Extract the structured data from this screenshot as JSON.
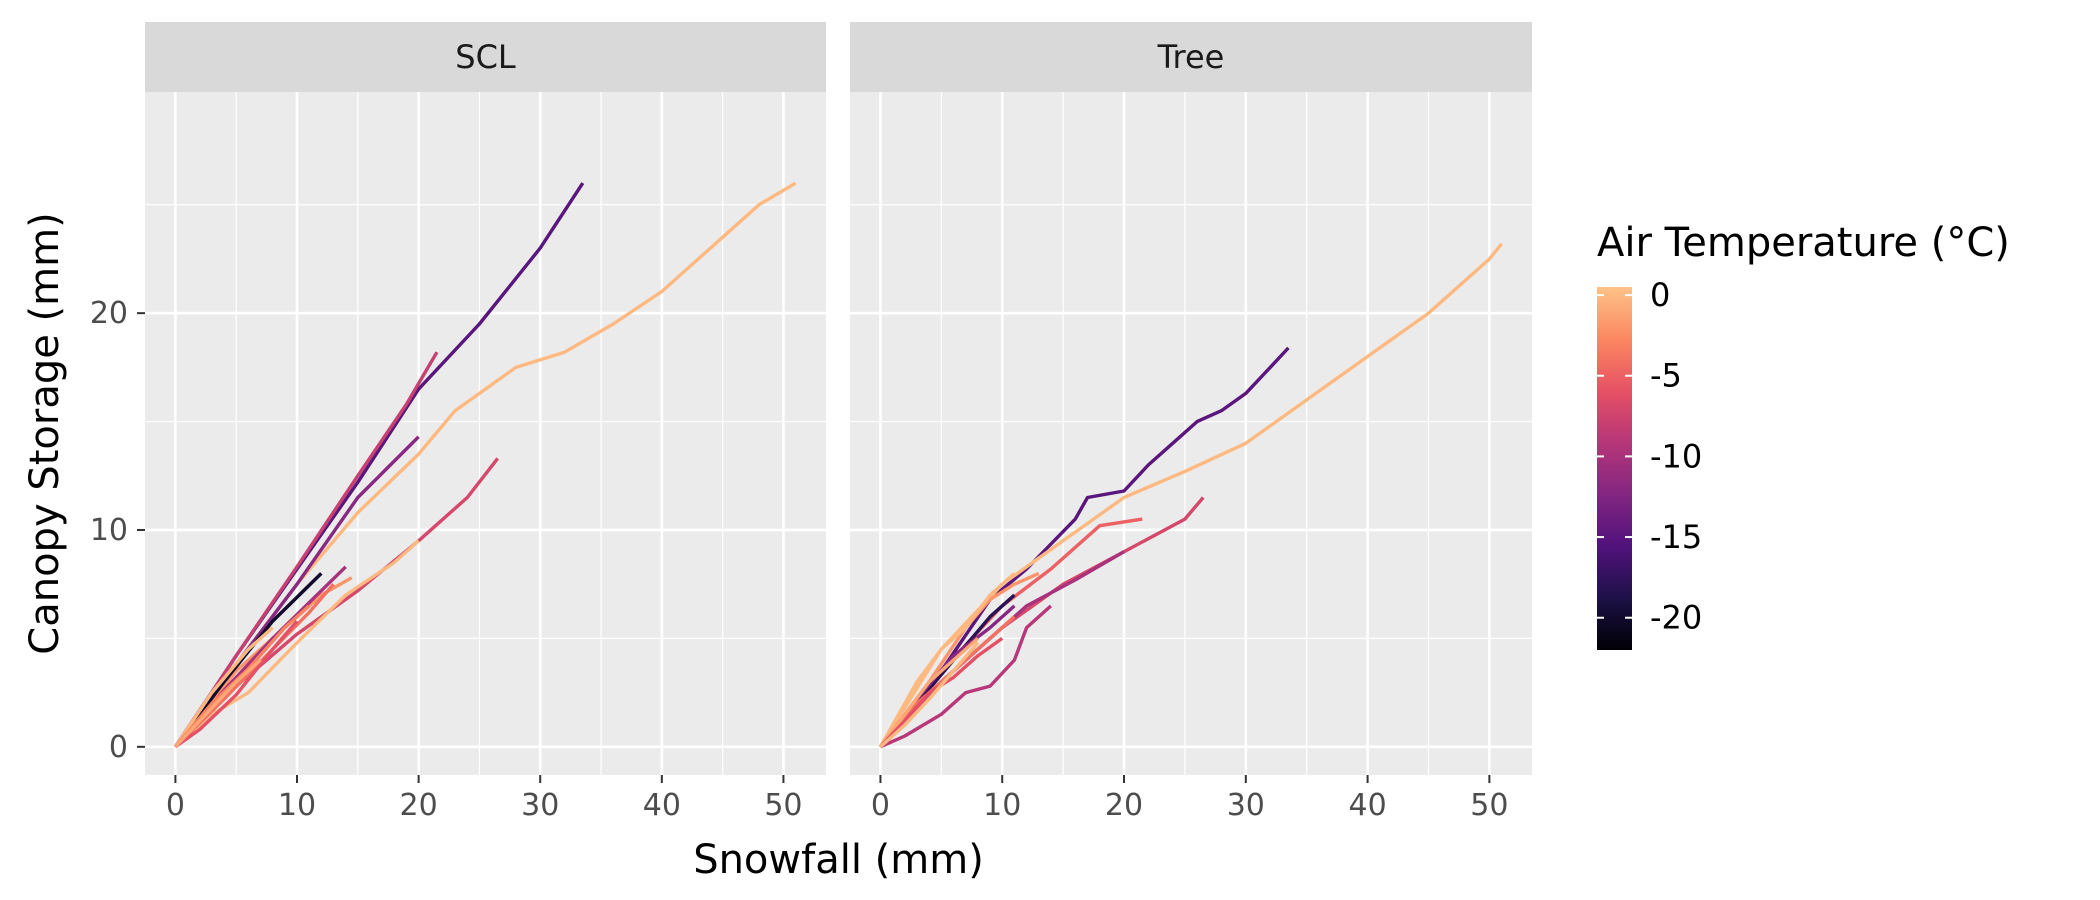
{
  "colors": {
    "panel_background": "#EBEBEB",
    "strip_background": "#D9D9D9",
    "grid": "#FFFFFF",
    "tick": "#333333",
    "colorscale_magma": [
      "#000004",
      "#1D1147",
      "#51127C",
      "#822681",
      "#B63679",
      "#E65164",
      "#FB8861",
      "#FEC287"
    ]
  },
  "chart_data": {
    "type": "line",
    "title": "",
    "xlabel": "Snowfall (mm)",
    "ylabel": "Canopy Storage (mm)",
    "color_legend": {
      "title": "Air Temperature (°C)",
      "ticks": [
        0,
        -5,
        -10,
        -15,
        -20
      ],
      "range": [
        -22,
        0.5
      ],
      "placement": "right"
    },
    "xlim": [
      -2.5,
      53.5
    ],
    "ylim": [
      -1.3,
      30.2
    ],
    "x_ticks": [
      0,
      10,
      20,
      30,
      40,
      50
    ],
    "y_ticks": [
      0,
      10,
      20
    ],
    "grid": true,
    "facets": [
      {
        "label": "SCL",
        "series": [
          {
            "temperature": -15,
            "points": [
              [
                0,
                0
              ],
              [
                5,
                4.2
              ],
              [
                10,
                8.2
              ],
              [
                15,
                12.2
              ],
              [
                20,
                16.5
              ],
              [
                25,
                19.5
              ],
              [
                30,
                23
              ],
              [
                33.5,
                26
              ]
            ]
          },
          {
            "temperature": 0,
            "points": [
              [
                0,
                0
              ],
              [
                5,
                3.8
              ],
              [
                10,
                7.5
              ],
              [
                15,
                10.8
              ],
              [
                20,
                13.5
              ],
              [
                23,
                15.5
              ],
              [
                28,
                17.5
              ],
              [
                32,
                18.2
              ],
              [
                36,
                19.5
              ],
              [
                40,
                21
              ],
              [
                45,
                23.5
              ],
              [
                48,
                25
              ],
              [
                51,
                26
              ]
            ]
          },
          {
            "temperature": -8,
            "points": [
              [
                0,
                0
              ],
              [
                5,
                4.2
              ],
              [
                10,
                8.3
              ],
              [
                15,
                12.5
              ],
              [
                19,
                15.8
              ],
              [
                21.5,
                18.2
              ]
            ]
          },
          {
            "temperature": -12,
            "points": [
              [
                0,
                0
              ],
              [
                5,
                3.8
              ],
              [
                10,
                7.5
              ],
              [
                15,
                11.5
              ],
              [
                20,
                14.3
              ]
            ]
          },
          {
            "temperature": -7,
            "points": [
              [
                0,
                0
              ],
              [
                5,
                2.8
              ],
              [
                10,
                5.2
              ],
              [
                15,
                7.2
              ],
              [
                20,
                9.5
              ],
              [
                24,
                11.5
              ],
              [
                26.5,
                13.3
              ]
            ]
          },
          {
            "temperature": 0,
            "points": [
              [
                0,
                0
              ],
              [
                3,
                1.5
              ],
              [
                6,
                2.5
              ],
              [
                10,
                4.8
              ],
              [
                14,
                7
              ],
              [
                18,
                8.5
              ],
              [
                20,
                9.5
              ]
            ]
          },
          {
            "temperature": -2,
            "points": [
              [
                0,
                0
              ],
              [
                5,
                3.5
              ],
              [
                9,
                5.5
              ],
              [
                12,
                7
              ],
              [
                14.5,
                7.8
              ]
            ]
          },
          {
            "temperature": -10,
            "points": [
              [
                0,
                0
              ],
              [
                4,
                2.6
              ],
              [
                8,
                5
              ],
              [
                12,
                7.2
              ],
              [
                14,
                8.3
              ]
            ]
          },
          {
            "temperature": -4,
            "points": [
              [
                0,
                0
              ],
              [
                4,
                2.2
              ],
              [
                8,
                4.5
              ],
              [
                11,
                6.2
              ],
              [
                13,
                7.5
              ]
            ]
          },
          {
            "temperature": -20,
            "points": [
              [
                0,
                0
              ],
              [
                4,
                3
              ],
              [
                8,
                5.8
              ],
              [
                12,
                8
              ]
            ]
          },
          {
            "temperature": 0,
            "points": [
              [
                0,
                0
              ],
              [
                3,
                2.5
              ],
              [
                6,
                4.5
              ],
              [
                8,
                5.5
              ]
            ]
          },
          {
            "temperature": -3,
            "points": [
              [
                0,
                0
              ],
              [
                3,
                2
              ],
              [
                6,
                3.6
              ],
              [
                9,
                5.5
              ],
              [
                11,
                6.5
              ]
            ]
          },
          {
            "temperature": -6,
            "points": [
              [
                0,
                0
              ],
              [
                2,
                0.8
              ],
              [
                5,
                2.4
              ],
              [
                8,
                4.5
              ],
              [
                10,
                5.8
              ]
            ]
          },
          {
            "temperature": -1,
            "points": [
              [
                0,
                0
              ],
              [
                3,
                1.8
              ],
              [
                5,
                3
              ],
              [
                7,
                4
              ]
            ]
          }
        ]
      },
      {
        "label": "Tree",
        "series": [
          {
            "temperature": -15,
            "points": [
              [
                0,
                0
              ],
              [
                5,
                3.5
              ],
              [
                9,
                6.8
              ],
              [
                12,
                8.2
              ],
              [
                16,
                10.5
              ],
              [
                17,
                11.5
              ],
              [
                20,
                11.8
              ],
              [
                22,
                13
              ],
              [
                24,
                14
              ],
              [
                26,
                15
              ],
              [
                28,
                15.5
              ],
              [
                30,
                16.3
              ],
              [
                32,
                17.5
              ],
              [
                33.5,
                18.4
              ]
            ]
          },
          {
            "temperature": 0,
            "points": [
              [
                0,
                0
              ],
              [
                5,
                4.5
              ],
              [
                10,
                7.5
              ],
              [
                15,
                9.5
              ],
              [
                20,
                11.5
              ],
              [
                25,
                12.7
              ],
              [
                30,
                14
              ],
              [
                35,
                16
              ],
              [
                40,
                18
              ],
              [
                45,
                20
              ],
              [
                50,
                22.5
              ],
              [
                51,
                23.2
              ]
            ]
          },
          {
            "temperature": -7,
            "points": [
              [
                0,
                0
              ],
              [
                5,
                3
              ],
              [
                10,
                5.5
              ],
              [
                15,
                7.5
              ],
              [
                20,
                9
              ],
              [
                25,
                10.5
              ],
              [
                26.5,
                11.5
              ]
            ]
          },
          {
            "temperature": -5,
            "points": [
              [
                0,
                0
              ],
              [
                5,
                3.5
              ],
              [
                10,
                6.5
              ],
              [
                14,
                8.2
              ],
              [
                18,
                10.2
              ],
              [
                21.5,
                10.5
              ]
            ]
          },
          {
            "temperature": -10,
            "points": [
              [
                0,
                0
              ],
              [
                4,
                2.5
              ],
              [
                8,
                4.5
              ],
              [
                12,
                6.5
              ],
              [
                16,
                7.7
              ],
              [
                20,
                9
              ]
            ]
          },
          {
            "temperature": -9,
            "points": [
              [
                0,
                0
              ],
              [
                2,
                0.5
              ],
              [
                5,
                1.5
              ],
              [
                7,
                2.5
              ],
              [
                9,
                2.8
              ],
              [
                11,
                4
              ],
              [
                12,
                5.5
              ],
              [
                14,
                6.5
              ]
            ]
          },
          {
            "temperature": -2,
            "points": [
              [
                0,
                0
              ],
              [
                4,
                3
              ],
              [
                7,
                5.5
              ],
              [
                9,
                6.8
              ],
              [
                11,
                7.5
              ],
              [
                13,
                8
              ]
            ]
          },
          {
            "temperature": -18,
            "points": [
              [
                0,
                0
              ],
              [
                3,
                2
              ],
              [
                6,
                4
              ],
              [
                9,
                6
              ],
              [
                11,
                7
              ]
            ]
          },
          {
            "temperature": -12,
            "points": [
              [
                0,
                0
              ],
              [
                3,
                2.2
              ],
              [
                6,
                4.2
              ],
              [
                9,
                5.5
              ],
              [
                11,
                6.5
              ]
            ]
          },
          {
            "temperature": 0,
            "points": [
              [
                0,
                0
              ],
              [
                3,
                3
              ],
              [
                5,
                4.5
              ],
              [
                7,
                5.5
              ],
              [
                9,
                7
              ],
              [
                11,
                8
              ]
            ]
          },
          {
            "temperature": -4,
            "points": [
              [
                0,
                0
              ],
              [
                3,
                2
              ],
              [
                6,
                3.5
              ],
              [
                9,
                5
              ],
              [
                11,
                6
              ]
            ]
          },
          {
            "temperature": -1,
            "points": [
              [
                0,
                0
              ],
              [
                2,
                1.5
              ],
              [
                4,
                3
              ],
              [
                6,
                4
              ],
              [
                8,
                5
              ]
            ]
          },
          {
            "temperature": -6,
            "points": [
              [
                0,
                0
              ],
              [
                2,
                1.2
              ],
              [
                4,
                2.5
              ],
              [
                6,
                3.2
              ],
              [
                8,
                4.2
              ],
              [
                10,
                5
              ]
            ]
          },
          {
            "temperature": 0,
            "points": [
              [
                0,
                0
              ],
              [
                2,
                1
              ],
              [
                4,
                2.2
              ],
              [
                6,
                3.5
              ],
              [
                8,
                4.8
              ]
            ]
          }
        ]
      }
    ]
  }
}
